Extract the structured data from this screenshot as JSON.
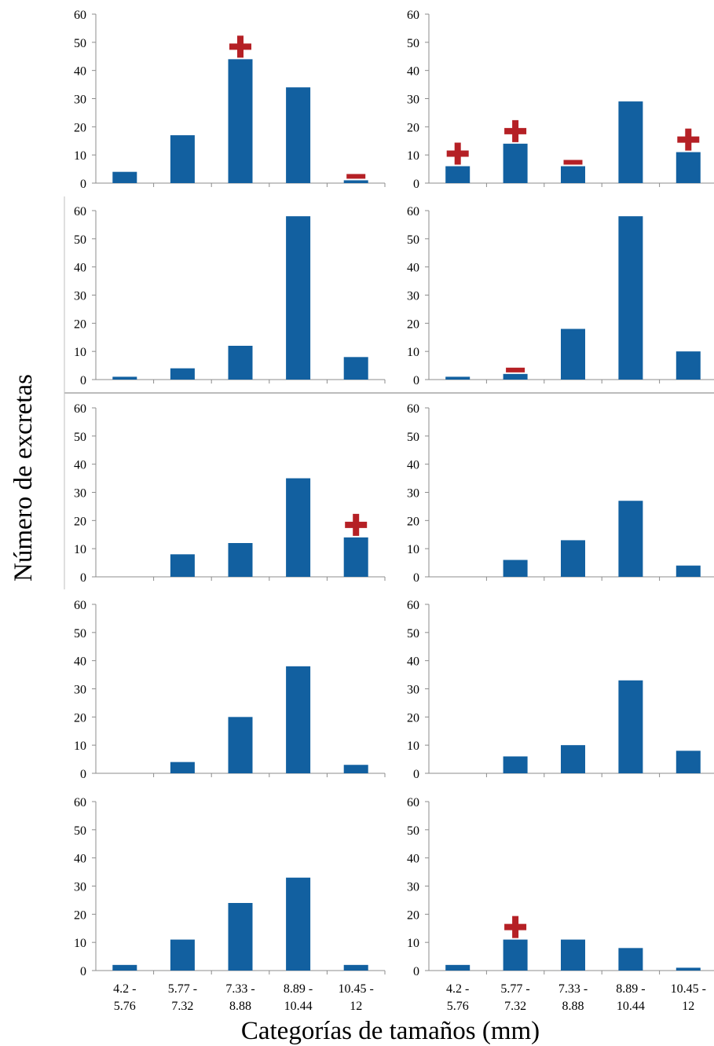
{
  "figure": {
    "ylabel": "Número de excretas",
    "xlabel": "Categorías de tamaños (mm)",
    "colors": {
      "bar": "#1260a0",
      "plus_marker": "#b52025",
      "minus_marker": "#b52025",
      "axis": "#8c8c8c"
    }
  },
  "chart_data": [
    {
      "type": "bar",
      "panel": "row1-left",
      "categories": [
        "4.2 - 5.76",
        "5.77 - 7.32",
        "7.33 - 8.88",
        "8.89 - 10.44",
        "10.45 - 12"
      ],
      "values": [
        4,
        17,
        44,
        34,
        1
      ],
      "markers": [
        null,
        null,
        "+",
        null,
        "-"
      ],
      "ylim": [
        0,
        60
      ],
      "yticks": [
        0,
        10,
        20,
        30,
        40,
        50,
        60
      ],
      "show_tick_labels": false
    },
    {
      "type": "bar",
      "panel": "row1-right",
      "categories": [
        "4.2 - 5.76",
        "5.77 - 7.32",
        "7.33 - 8.88",
        "8.89 - 10.44",
        "10.45 - 12"
      ],
      "values": [
        6,
        14,
        6,
        29,
        11
      ],
      "markers": [
        "+",
        "+",
        "-",
        null,
        "+"
      ],
      "ylim": [
        0,
        60
      ],
      "yticks": [
        0,
        10,
        20,
        30,
        40,
        50,
        60
      ],
      "show_tick_labels": false
    },
    {
      "type": "bar",
      "panel": "row2-left",
      "categories": [
        "4.2 - 5.76",
        "5.77 - 7.32",
        "7.33 - 8.88",
        "8.89 - 10.44",
        "10.45 - 12"
      ],
      "values": [
        1,
        4,
        12,
        58,
        8
      ],
      "markers": [
        null,
        null,
        null,
        null,
        null
      ],
      "ylim": [
        0,
        60
      ],
      "yticks": [
        0,
        10,
        20,
        30,
        40,
        50,
        60
      ],
      "show_tick_labels": false
    },
    {
      "type": "bar",
      "panel": "row2-right",
      "categories": [
        "4.2 - 5.76",
        "5.77 - 7.32",
        "7.33 - 8.88",
        "8.89 - 10.44",
        "10.45 - 12"
      ],
      "values": [
        1,
        2,
        18,
        58,
        10
      ],
      "markers": [
        null,
        "-",
        null,
        null,
        null
      ],
      "ylim": [
        0,
        60
      ],
      "yticks": [
        0,
        10,
        20,
        30,
        40,
        50,
        60
      ],
      "show_tick_labels": false
    },
    {
      "type": "bar",
      "panel": "row3-left",
      "categories": [
        "4.2 - 5.76",
        "5.77 - 7.32",
        "7.33 - 8.88",
        "8.89 - 10.44",
        "10.45 - 12"
      ],
      "values": [
        0,
        8,
        12,
        35,
        14
      ],
      "markers": [
        null,
        null,
        null,
        null,
        "+"
      ],
      "ylim": [
        0,
        60
      ],
      "yticks": [
        0,
        10,
        20,
        30,
        40,
        50,
        60
      ],
      "show_tick_labels": false
    },
    {
      "type": "bar",
      "panel": "row3-right",
      "categories": [
        "4.2 - 5.76",
        "5.77 - 7.32",
        "7.33 - 8.88",
        "8.89 - 10.44",
        "10.45 - 12"
      ],
      "values": [
        0,
        6,
        13,
        27,
        4
      ],
      "markers": [
        null,
        null,
        null,
        null,
        null
      ],
      "ylim": [
        0,
        60
      ],
      "yticks": [
        0,
        10,
        20,
        30,
        40,
        50,
        60
      ],
      "show_tick_labels": false
    },
    {
      "type": "bar",
      "panel": "row4-left",
      "categories": [
        "4.2 - 5.76",
        "5.77 - 7.32",
        "7.33 - 8.88",
        "8.89 - 10.44",
        "10.45 - 12"
      ],
      "values": [
        0,
        4,
        20,
        38,
        3
      ],
      "markers": [
        null,
        null,
        null,
        null,
        null
      ],
      "ylim": [
        0,
        60
      ],
      "yticks": [
        0,
        10,
        20,
        30,
        40,
        50,
        60
      ],
      "show_tick_labels": false
    },
    {
      "type": "bar",
      "panel": "row4-right",
      "categories": [
        "4.2 - 5.76",
        "5.77 - 7.32",
        "7.33 - 8.88",
        "8.89 - 10.44",
        "10.45 - 12"
      ],
      "values": [
        0,
        6,
        10,
        33,
        8
      ],
      "markers": [
        null,
        null,
        null,
        null,
        null
      ],
      "ylim": [
        0,
        60
      ],
      "yticks": [
        0,
        10,
        20,
        30,
        40,
        50,
        60
      ],
      "show_tick_labels": false
    },
    {
      "type": "bar",
      "panel": "row5-left",
      "categories": [
        "4.2 - 5.76",
        "5.77 - 7.32",
        "7.33 - 8.88",
        "8.89 - 10.44",
        "10.45 - 12"
      ],
      "values": [
        2,
        11,
        24,
        33,
        2
      ],
      "markers": [
        null,
        null,
        null,
        null,
        null
      ],
      "ylim": [
        0,
        60
      ],
      "yticks": [
        0,
        10,
        20,
        30,
        40,
        50,
        60
      ],
      "show_tick_labels": true
    },
    {
      "type": "bar",
      "panel": "row5-right",
      "categories": [
        "4.2 - 5.76",
        "5.77 - 7.32",
        "7.33 - 8.88",
        "8.89 - 10.44",
        "10.45 - 12"
      ],
      "values": [
        2,
        11,
        11,
        8,
        1
      ],
      "markers": [
        null,
        "+",
        null,
        null,
        null
      ],
      "ylim": [
        0,
        60
      ],
      "yticks": [
        0,
        10,
        20,
        30,
        40,
        50,
        60
      ],
      "show_tick_labels": true
    }
  ]
}
